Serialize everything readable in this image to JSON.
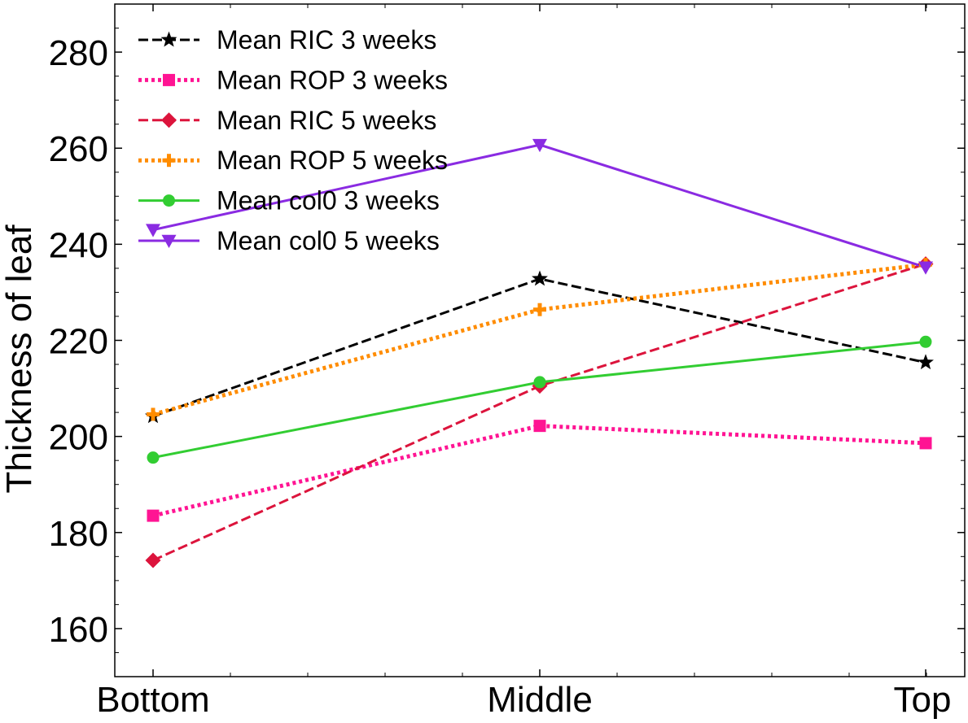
{
  "chart_data": {
    "type": "line",
    "title": "",
    "xlabel": "",
    "ylabel": "Thickness of leaf",
    "categories": [
      "Bottom",
      "Middle",
      "Top"
    ],
    "ylim": [
      150,
      290
    ],
    "yticks": [
      160,
      180,
      200,
      220,
      240,
      260,
      280
    ],
    "grid": false,
    "legend_position": "top-left",
    "series": [
      {
        "name": "Mean RIC 3 weeks",
        "values": [
          204.2,
          232.8,
          215.4
        ],
        "color": "#000000",
        "dash": "dashed",
        "marker": "star"
      },
      {
        "name": "Mean ROP 3 weeks",
        "values": [
          183.5,
          202.2,
          198.6
        ],
        "color": "#ff1493",
        "dash": "dotted",
        "marker": "square"
      },
      {
        "name": "Mean RIC 5 weeks",
        "values": [
          174.2,
          210.5,
          235.9
        ],
        "color": "#dc143c",
        "dash": "dashed",
        "marker": "diamond"
      },
      {
        "name": "Mean ROP 5 weeks",
        "values": [
          204.6,
          226.4,
          235.8
        ],
        "color": "#ff8c00",
        "dash": "dotted",
        "marker": "plus"
      },
      {
        "name": "Mean col0 3 weeks",
        "values": [
          195.6,
          211.3,
          219.7
        ],
        "color": "#32cd32",
        "dash": "solid",
        "marker": "circle"
      },
      {
        "name": "Mean col0 5 weeks",
        "values": [
          243.0,
          260.7,
          235.2
        ],
        "color": "#8a2be2",
        "dash": "solid",
        "marker": "triangle-down"
      }
    ]
  }
}
